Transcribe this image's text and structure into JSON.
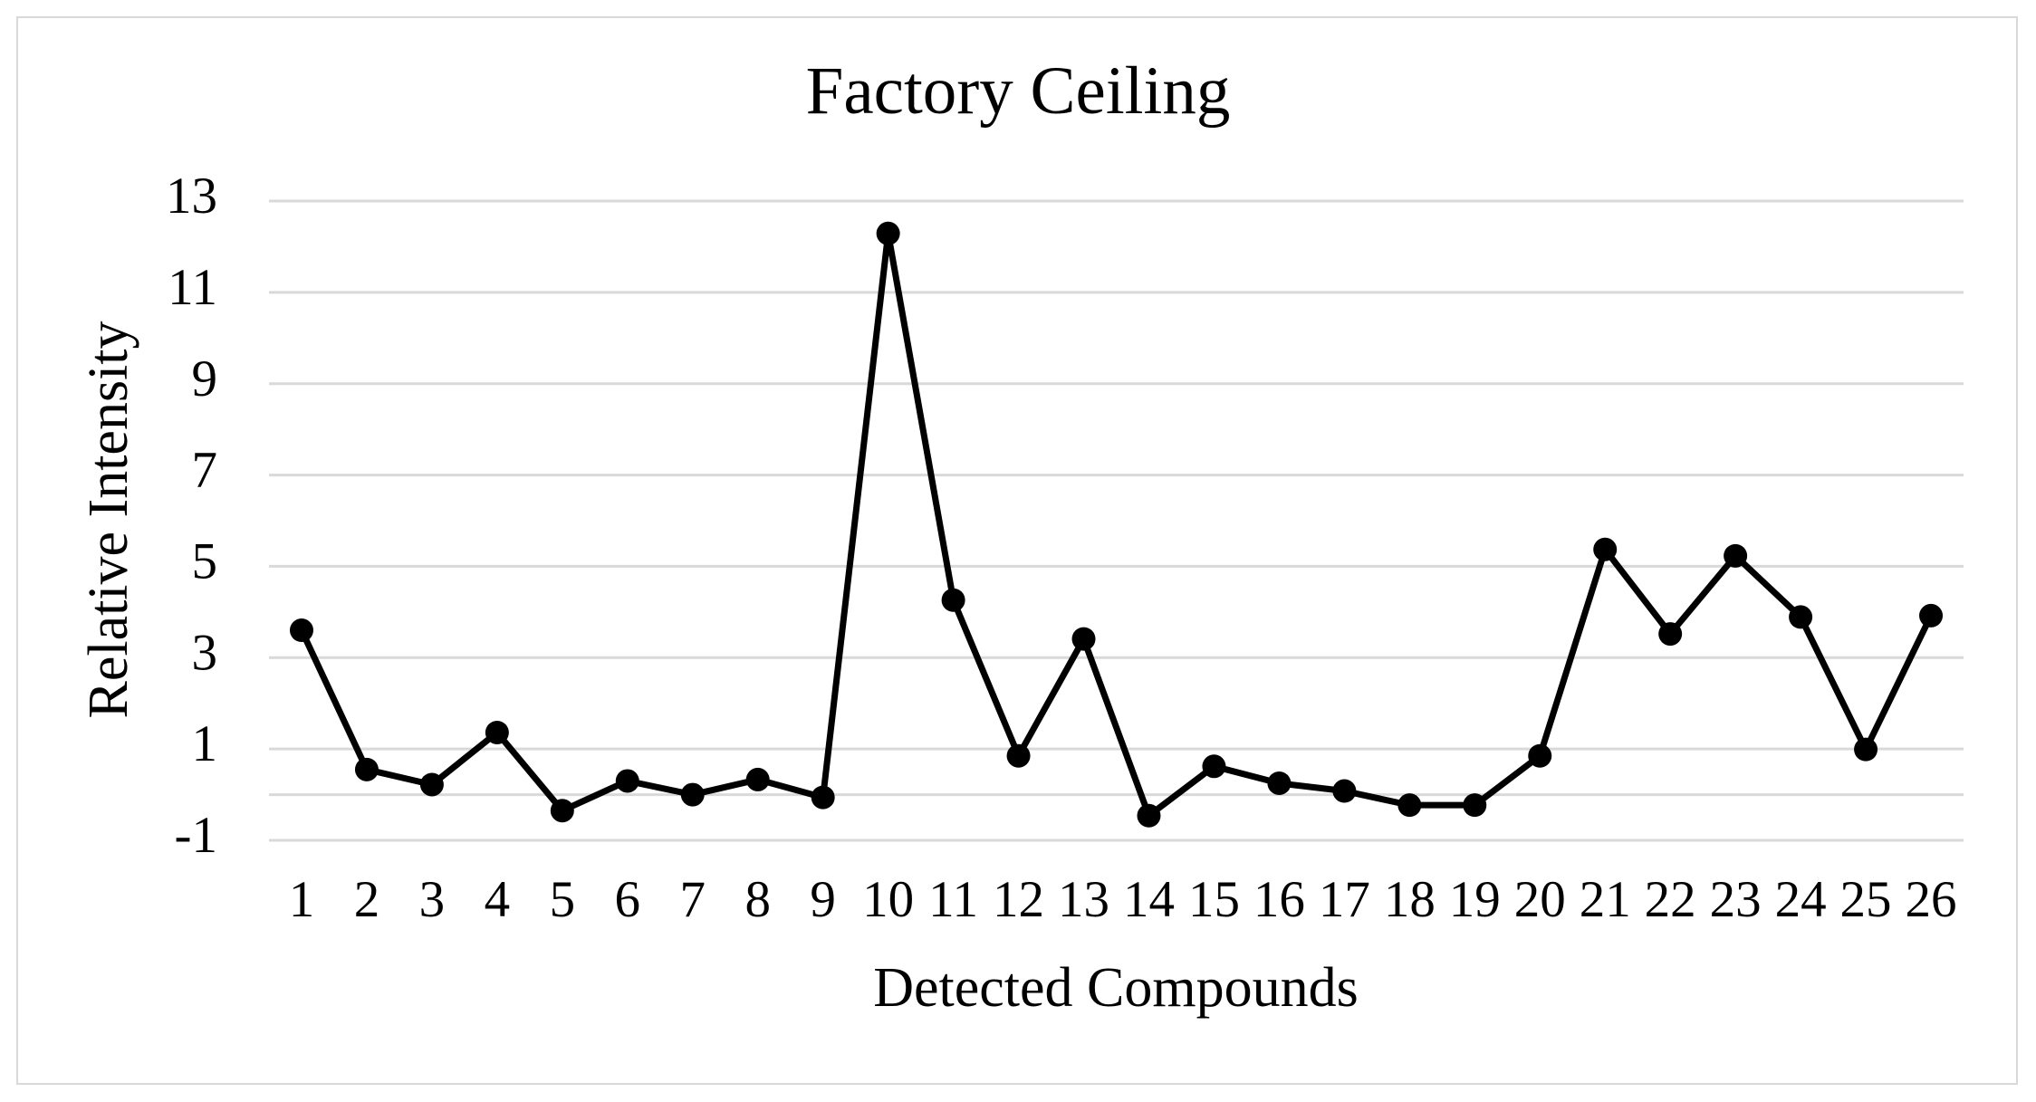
{
  "chart_data": {
    "type": "line",
    "title": "Factory Ceiling",
    "x_label": "Detected Compounds",
    "y_label": "Relative Intensity",
    "categories": [
      "1",
      "2",
      "3",
      "4",
      "5",
      "6",
      "7",
      "8",
      "9",
      "10",
      "11",
      "12",
      "13",
      "14",
      "15",
      "16",
      "17",
      "18",
      "19",
      "20",
      "21",
      "22",
      "23",
      "24",
      "25",
      "26"
    ],
    "values": [
      3.6,
      0.55,
      0.22,
      1.36,
      -0.35,
      0.3,
      0.0,
      0.33,
      -0.06,
      12.29,
      4.26,
      0.85,
      3.41,
      -0.46,
      0.62,
      0.25,
      0.08,
      -0.23,
      -0.23,
      0.85,
      5.37,
      3.52,
      5.23,
      3.89,
      0.99,
      3.92
    ],
    "color": "#000000",
    "ylim": [
      -1,
      13
    ],
    "yticks": [
      -1,
      1,
      3,
      5,
      7,
      9,
      11,
      13
    ],
    "grid": true
  }
}
